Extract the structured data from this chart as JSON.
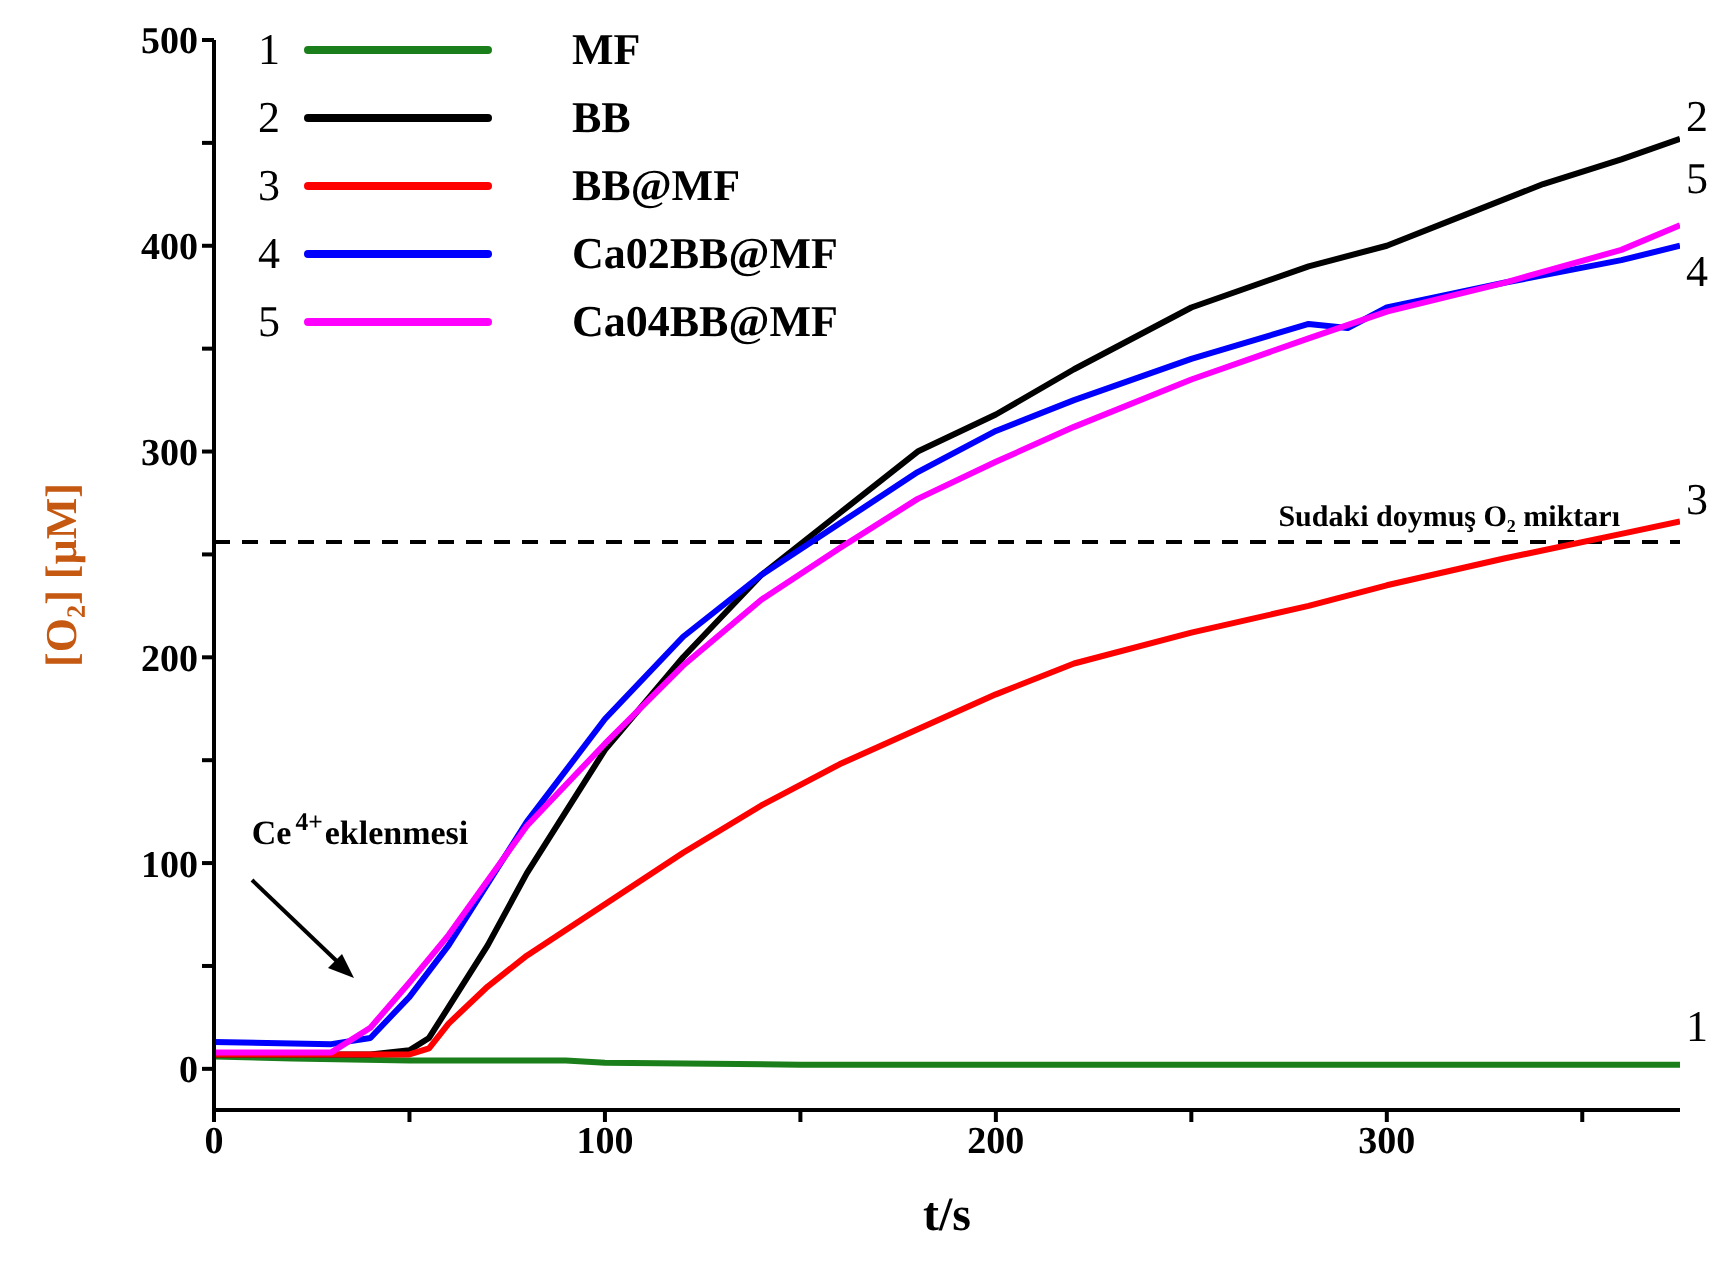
{
  "chart_data": {
    "type": "line",
    "xlabel": "t/s",
    "ylabel": "[O₂] [µM]",
    "xlim": [
      0,
      375
    ],
    "xticks": [
      0,
      {
        "value": 50,
        "label": null
      },
      100,
      {
        "value": 150,
        "label": null
      },
      200,
      {
        "value": 250,
        "label": null
      },
      300,
      {
        "value": 350,
        "label": null
      }
    ],
    "ylim": [
      -20,
      500
    ],
    "yticks": [
      0,
      {
        "value": 50,
        "label": null
      },
      100,
      {
        "value": 150,
        "label": null
      },
      200,
      {
        "value": 250,
        "label": null
      },
      300,
      {
        "value": 350,
        "label": null
      },
      400,
      {
        "value": 450,
        "label": null
      },
      500
    ],
    "series": [
      {
        "name": "MF",
        "color": "#1a7f1a",
        "x": [
          0,
          20,
          50,
          90,
          100,
          150,
          200,
          250,
          300,
          375
        ],
        "values": [
          6,
          5,
          4,
          4,
          3,
          2,
          2,
          2,
          2,
          2
        ]
      },
      {
        "name": "BB",
        "color": "#000000",
        "x": [
          0,
          40,
          50,
          55,
          60,
          70,
          80,
          90,
          100,
          120,
          140,
          160,
          180,
          200,
          220,
          250,
          280,
          300,
          320,
          340,
          360,
          375
        ],
        "values": [
          7,
          7,
          9,
          15,
          30,
          60,
          95,
          125,
          155,
          200,
          240,
          270,
          300,
          318,
          340,
          370,
          390,
          400,
          415,
          430,
          442,
          452
        ]
      },
      {
        "name": "BB@MF",
        "color": "#ff0000",
        "x": [
          0,
          50,
          55,
          60,
          70,
          80,
          100,
          120,
          140,
          160,
          180,
          200,
          220,
          250,
          280,
          300,
          330,
          360,
          375
        ],
        "values": [
          7,
          7,
          10,
          22,
          40,
          55,
          80,
          105,
          128,
          148,
          165,
          182,
          197,
          212,
          225,
          235,
          248,
          260,
          266
        ]
      },
      {
        "name": "Ca02BB@MF",
        "color": "#0000ff",
        "x": [
          0,
          30,
          40,
          50,
          60,
          80,
          100,
          120,
          140,
          160,
          180,
          200,
          220,
          250,
          280,
          290,
          300,
          330,
          360,
          375
        ],
        "values": [
          13,
          12,
          15,
          35,
          60,
          120,
          170,
          210,
          240,
          265,
          290,
          310,
          325,
          345,
          362,
          360,
          370,
          382,
          393,
          400
        ]
      },
      {
        "name": "Ca04BB@MF",
        "color": "#ff00ff",
        "x": [
          0,
          30,
          40,
          50,
          60,
          80,
          100,
          120,
          140,
          160,
          180,
          200,
          220,
          250,
          280,
          300,
          330,
          360,
          375
        ],
        "values": [
          8,
          8,
          20,
          42,
          65,
          118,
          158,
          196,
          228,
          253,
          277,
          295,
          312,
          335,
          355,
          368,
          382,
          398,
          410
        ]
      }
    ],
    "ref_lines": [
      {
        "axis": "y",
        "value": 256,
        "label": "Sudaki doymuş O₂ miktarı",
        "color": "#000000",
        "line_style": "dashed"
      }
    ],
    "annotations": [
      "Ce$^{4+}$eklenmesi",
      "1",
      "2",
      "3",
      "4",
      "5"
    ],
    "grid": false,
    "legend": "top left",
    "marker": "none",
    "line_style": "solid"
  }
}
